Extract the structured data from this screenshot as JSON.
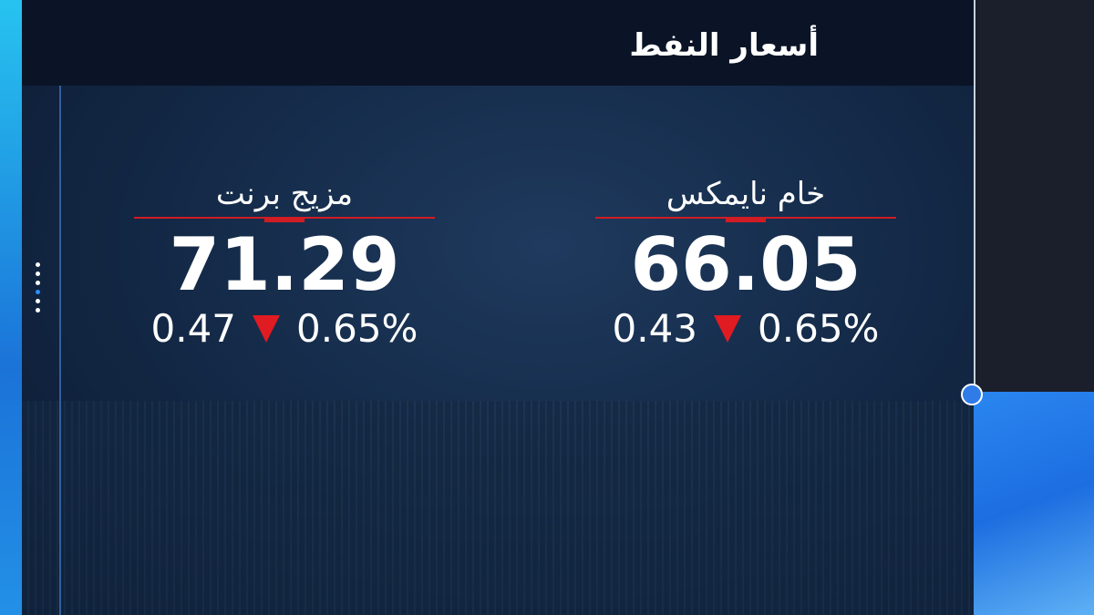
{
  "header": {
    "title": "أسعار النفط"
  },
  "cards": [
    {
      "name": "مزيج برنت",
      "price": "71.29",
      "change": "0.47",
      "percent": "0.65%"
    },
    {
      "name": "خام نايمكس",
      "price": "66.05",
      "change": "0.43",
      "percent": "0.65%"
    }
  ]
}
